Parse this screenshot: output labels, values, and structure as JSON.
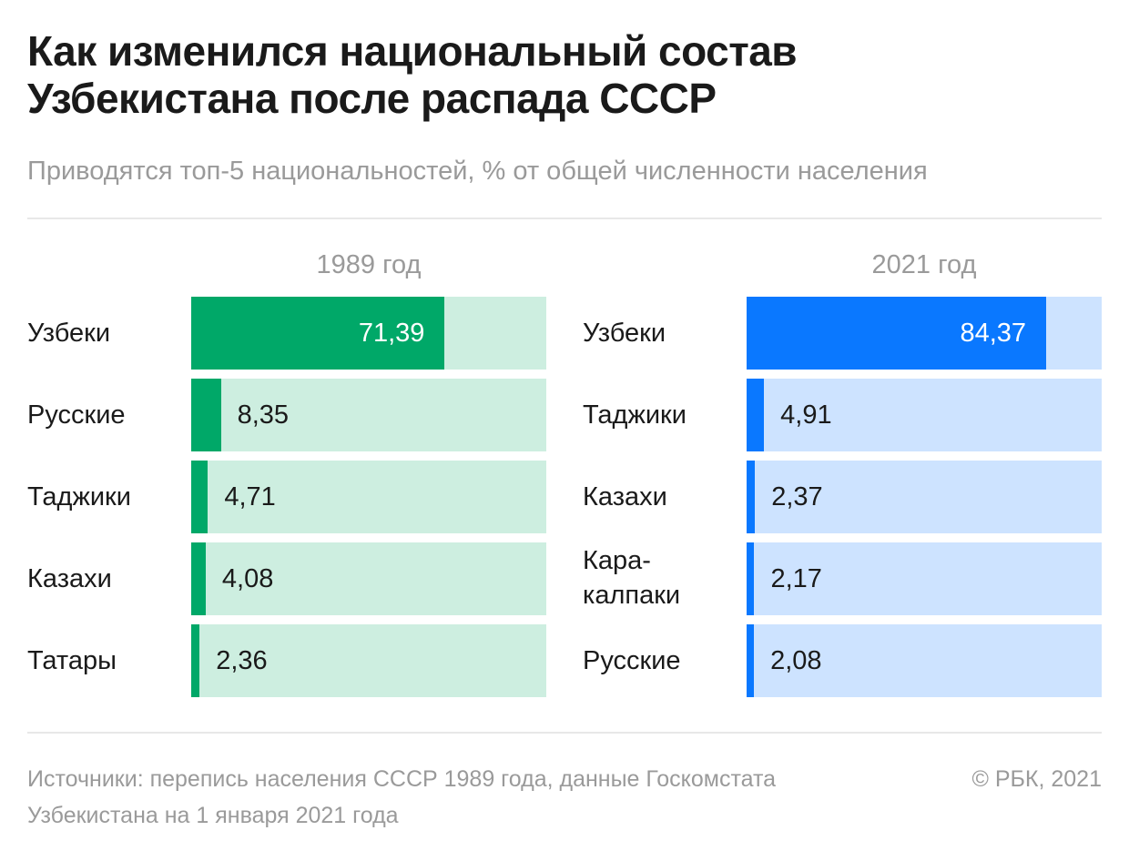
{
  "header": {
    "title_line1": "Как изменился национальный состав",
    "title_line2": "Узбекистана после распада СССР",
    "subtitle": "Приводятся топ-5 национальностей, % от общей численности населения"
  },
  "footer": {
    "source_line1": "Источники: перепись населения СССР 1989 года, данные Госкомстата",
    "source_line2": "Узбекистана на 1 января 2021 года",
    "copyright": "© РБК, 2021"
  },
  "chart_data": [
    {
      "type": "bar",
      "title": "1989 год",
      "categories": [
        "Узбеки",
        "Русские",
        "Таджики",
        "Казахи",
        "Татары"
      ],
      "values": [
        71.39,
        8.35,
        4.71,
        4.08,
        2.36
      ],
      "value_labels": [
        "71,39",
        "8,35",
        "4,71",
        "4,08",
        "2,36"
      ],
      "xlim": [
        0,
        100
      ],
      "colors": {
        "bar": "#00a868",
        "track": "#cdeee0"
      }
    },
    {
      "type": "bar",
      "title": "2021 год",
      "categories": [
        "Узбеки",
        "Таджики",
        "Казахи",
        "Кара-\nкалпаки",
        "Русские"
      ],
      "values": [
        84.37,
        4.91,
        2.37,
        2.17,
        2.08
      ],
      "value_labels": [
        "84,37",
        "4,91",
        "2,37",
        "2,17",
        "2,08"
      ],
      "xlim": [
        0,
        100
      ],
      "colors": {
        "bar": "#0a78ff",
        "track": "#cde3ff"
      }
    }
  ]
}
